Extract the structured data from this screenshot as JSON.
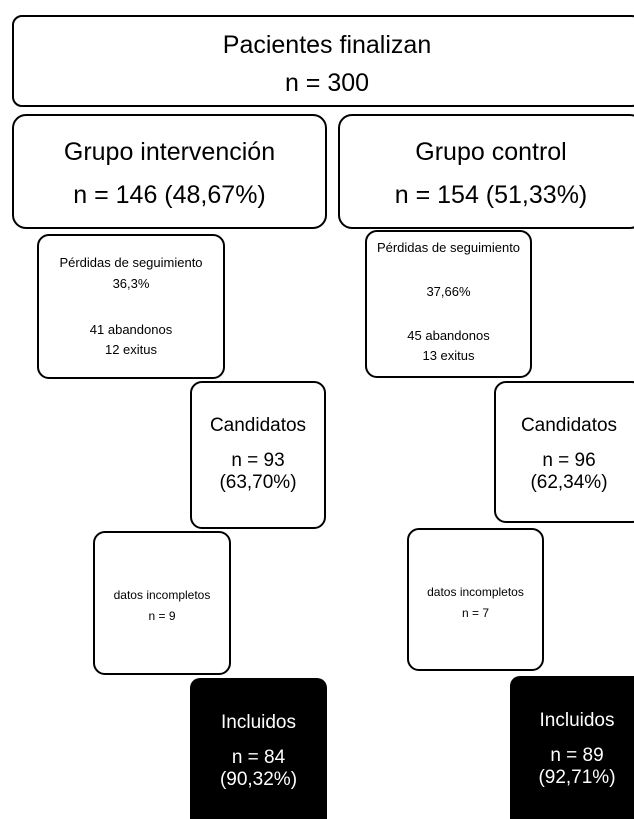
{
  "top": {
    "line1": "Pacientes finalizan",
    "line2": "n = 300"
  },
  "groups": {
    "intervention": {
      "title": "Grupo intervención",
      "n": "n = 146 (48,67%)",
      "losses": {
        "title": "Pérdidas de seguimiento",
        "pct": "36,3%",
        "dropouts": "41 abandonos",
        "deaths": "12 exitus"
      },
      "candidates": {
        "title": "Candidatos",
        "n": "n = 93",
        "pct": "(63,70%)"
      },
      "incomplete": {
        "title": "datos incompletos",
        "n": "n = 9"
      },
      "included": {
        "title": "Incluidos",
        "n": "n = 84",
        "pct": "(90,32%)"
      }
    },
    "control": {
      "title": "Grupo control",
      "n": "n = 154 (51,33%)",
      "losses": {
        "title": "Pérdidas de seguimiento",
        "pct": "37,66%",
        "dropouts": "45 abandonos",
        "deaths": "13 exitus"
      },
      "candidates": {
        "title": "Candidatos",
        "n": "n = 96",
        "pct": "(62,34%)"
      },
      "incomplete": {
        "title": "datos incompletos",
        "n": "n = 7"
      },
      "included": {
        "title": "Incluidos",
        "n": "n = 89",
        "pct": "(92,71%)"
      }
    }
  },
  "colors": {
    "border": "#000000",
    "included_fill": "#000000",
    "included_text": "#ffffff"
  }
}
